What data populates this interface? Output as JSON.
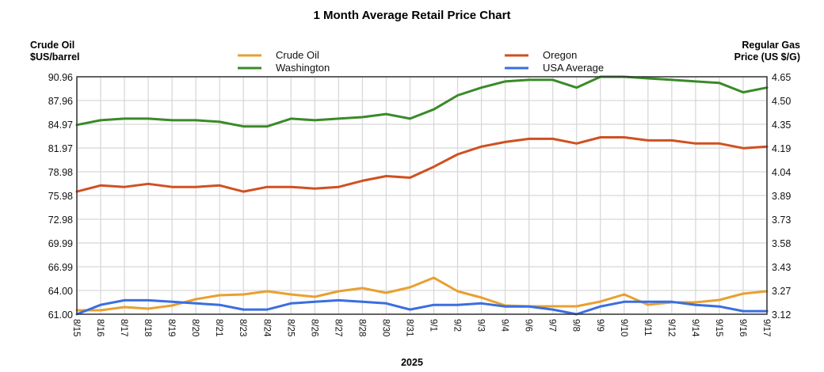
{
  "chart_data": {
    "type": "line",
    "title": "1 Month Average Retail Price Chart",
    "xlabel": "2025",
    "ylabel_left": [
      "Crude Oil",
      "$US/barrel"
    ],
    "ylabel_right": [
      "Regular Gas",
      "Price (US $/G)"
    ],
    "ylim_left": [
      61.0,
      90.96
    ],
    "ylim_right": [
      3.12,
      4.65
    ],
    "yticks_left": [
      "90.96",
      "87.96",
      "84.97",
      "81.97",
      "78.98",
      "75.98",
      "72.98",
      "69.99",
      "66.99",
      "64.00",
      "61.00"
    ],
    "yticks_right": [
      "4.65",
      "4.50",
      "4.35",
      "4.19",
      "4.04",
      "3.89",
      "3.73",
      "3.58",
      "3.43",
      "3.27",
      "3.12"
    ],
    "grid": true,
    "categories": [
      "8/15",
      "8/16",
      "8/17",
      "8/18",
      "8/19",
      "8/20",
      "8/21",
      "8/23",
      "8/24",
      "8/25",
      "8/26",
      "8/27",
      "8/28",
      "8/30",
      "8/31",
      "9/1",
      "9/2",
      "9/3",
      "9/4",
      "9/6",
      "9/7",
      "9/8",
      "9/9",
      "9/10",
      "9/11",
      "9/12",
      "9/14",
      "9/15",
      "9/16",
      "9/17"
    ],
    "legend": [
      {
        "name": "Crude Oil",
        "color": "#e8a030"
      },
      {
        "name": "Washington",
        "color": "#3a8a28"
      },
      {
        "name": "Oregon",
        "color": "#d05020"
      },
      {
        "name": "USA Average",
        "color": "#3a6ee0"
      }
    ],
    "series": [
      {
        "name": "Crude Oil",
        "axis": "left",
        "color": "#e8a030",
        "values": [
          61.5,
          61.5,
          61.9,
          61.7,
          62.1,
          62.9,
          63.4,
          63.5,
          63.9,
          63.5,
          63.2,
          63.9,
          64.3,
          63.7,
          64.4,
          65.6,
          63.9,
          63.1,
          62.1,
          62.0,
          62.0,
          62.0,
          62.6,
          63.5,
          62.2,
          62.5,
          62.5,
          62.8,
          63.6,
          63.9
        ]
      },
      {
        "name": "Washington",
        "axis": "right",
        "color": "#3a8a28",
        "values": [
          4.34,
          4.37,
          4.38,
          4.38,
          4.37,
          4.37,
          4.36,
          4.33,
          4.33,
          4.38,
          4.37,
          4.38,
          4.39,
          4.41,
          4.38,
          4.44,
          4.53,
          4.58,
          4.62,
          4.63,
          4.63,
          4.58,
          4.65,
          4.65,
          4.64,
          4.63,
          4.62,
          4.61,
          4.55,
          4.58
        ]
      },
      {
        "name": "Oregon",
        "axis": "right",
        "color": "#d05020",
        "values": [
          3.91,
          3.95,
          3.94,
          3.96,
          3.94,
          3.94,
          3.95,
          3.91,
          3.94,
          3.94,
          3.93,
          3.94,
          3.98,
          4.01,
          4.0,
          4.07,
          4.15,
          4.2,
          4.23,
          4.25,
          4.25,
          4.22,
          4.26,
          4.26,
          4.24,
          4.24,
          4.22,
          4.22,
          4.19,
          4.2
        ]
      },
      {
        "name": "USA Average",
        "axis": "right",
        "color": "#3a6ee0",
        "values": [
          3.12,
          3.18,
          3.21,
          3.21,
          3.2,
          3.19,
          3.18,
          3.15,
          3.15,
          3.19,
          3.2,
          3.21,
          3.2,
          3.19,
          3.15,
          3.18,
          3.18,
          3.19,
          3.17,
          3.17,
          3.15,
          3.12,
          3.17,
          3.2,
          3.2,
          3.2,
          3.18,
          3.17,
          3.14,
          3.14
        ]
      }
    ]
  }
}
